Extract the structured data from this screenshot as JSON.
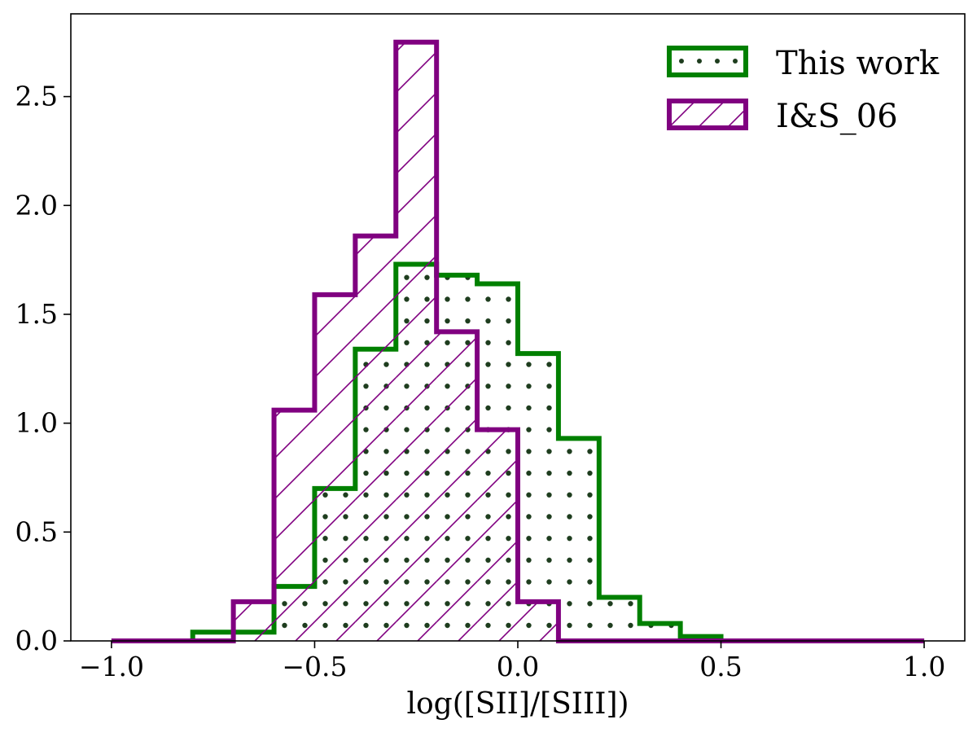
{
  "chart_data": {
    "type": "histogram",
    "xlabel": "log([SII]/[SIII])",
    "ylabel": "",
    "title": "",
    "xlim": [
      -1.1,
      1.1
    ],
    "ylim": [
      0,
      2.88
    ],
    "x_ticks": [
      -1.0,
      -0.5,
      0.0,
      0.5,
      1.0
    ],
    "x_tick_labels": [
      "−1.0",
      "−0.5",
      "0.0",
      "0.5",
      "1.0"
    ],
    "y_ticks": [
      0.0,
      0.5,
      1.0,
      1.5,
      2.0,
      2.5
    ],
    "y_tick_labels": [
      "0.0",
      "0.5",
      "1.0",
      "1.5",
      "2.0",
      "2.5"
    ],
    "grid": false,
    "legend_position": "top-right",
    "bin_edges": [
      -1.0,
      -0.9,
      -0.8,
      -0.7,
      -0.6,
      -0.5,
      -0.4,
      -0.3,
      -0.2,
      -0.1,
      0.0,
      0.1,
      0.2,
      0.3,
      0.4,
      0.5,
      0.6,
      0.7,
      0.8,
      0.9,
      1.0
    ],
    "series": [
      {
        "name": "This work",
        "color": "#008000",
        "hatch": "dots",
        "values": [
          0,
          0,
          0.04,
          0.04,
          0.25,
          0.7,
          1.34,
          1.73,
          1.68,
          1.64,
          1.32,
          0.93,
          0.2,
          0.08,
          0.02,
          0,
          0,
          0,
          0,
          0
        ]
      },
      {
        "name": "I&S_06",
        "color": "#800080",
        "hatch": "diagonal",
        "values": [
          0,
          0,
          0,
          0.18,
          1.06,
          1.59,
          1.86,
          2.75,
          1.42,
          0.97,
          0.18,
          0,
          0,
          0,
          0,
          0,
          0,
          0,
          0,
          0
        ]
      }
    ]
  }
}
